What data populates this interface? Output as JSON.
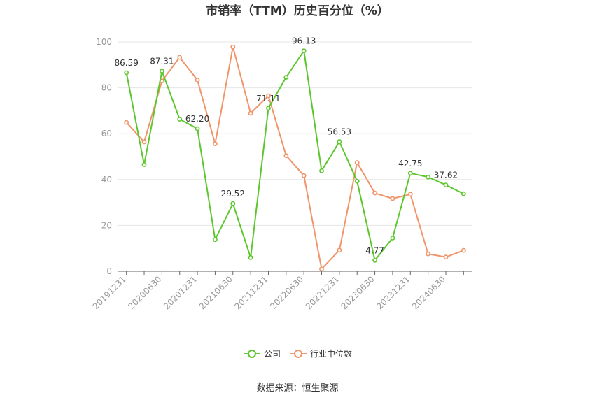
{
  "chart_data": {
    "type": "line",
    "title": "市销率（TTM）历史百分位（%）",
    "source": "数据来源：恒生聚源",
    "ylim": [
      0,
      100
    ],
    "yticks": [
      0,
      20,
      40,
      60,
      80,
      100
    ],
    "grid": true,
    "legend_position": "bottom",
    "x": [
      "20191231",
      "20200331",
      "20200630",
      "20200930",
      "20201231",
      "20210331",
      "20210630",
      "20210930",
      "20211231",
      "20220331",
      "20220630",
      "20220930",
      "20221231",
      "20230331",
      "20230630",
      "20230930",
      "20231231",
      "20240331",
      "20240630",
      "20240930"
    ],
    "xtick_labels": [
      "20191231",
      "20200630",
      "20201231",
      "20210630",
      "20211231",
      "20220630",
      "20221231",
      "20230630",
      "20231231",
      "20240630"
    ],
    "series": [
      {
        "name": "公司",
        "color": "#5cc72c",
        "values": [
          86.59,
          46.5,
          87.31,
          66.3,
          62.2,
          13.8,
          29.52,
          6.0,
          71.11,
          84.6,
          96.13,
          43.8,
          56.53,
          39.3,
          4.77,
          14.5,
          42.75,
          41.1,
          37.62,
          33.8
        ],
        "labels": [
          "86.59",
          "",
          "87.31",
          "",
          "62.20",
          "",
          "29.52",
          "",
          "71.11",
          "",
          "96.13",
          "",
          "56.53",
          "",
          "4.77",
          "",
          "42.75",
          "",
          "37.62",
          ""
        ]
      },
      {
        "name": "行业中位数",
        "color": "#f0956a",
        "values": [
          64.9,
          56.4,
          83.0,
          93.3,
          83.4,
          55.6,
          97.8,
          68.9,
          76.5,
          50.4,
          41.7,
          1.0,
          9.2,
          47.4,
          34.1,
          31.7,
          33.6,
          7.6,
          6.2,
          9.1
        ]
      }
    ]
  }
}
